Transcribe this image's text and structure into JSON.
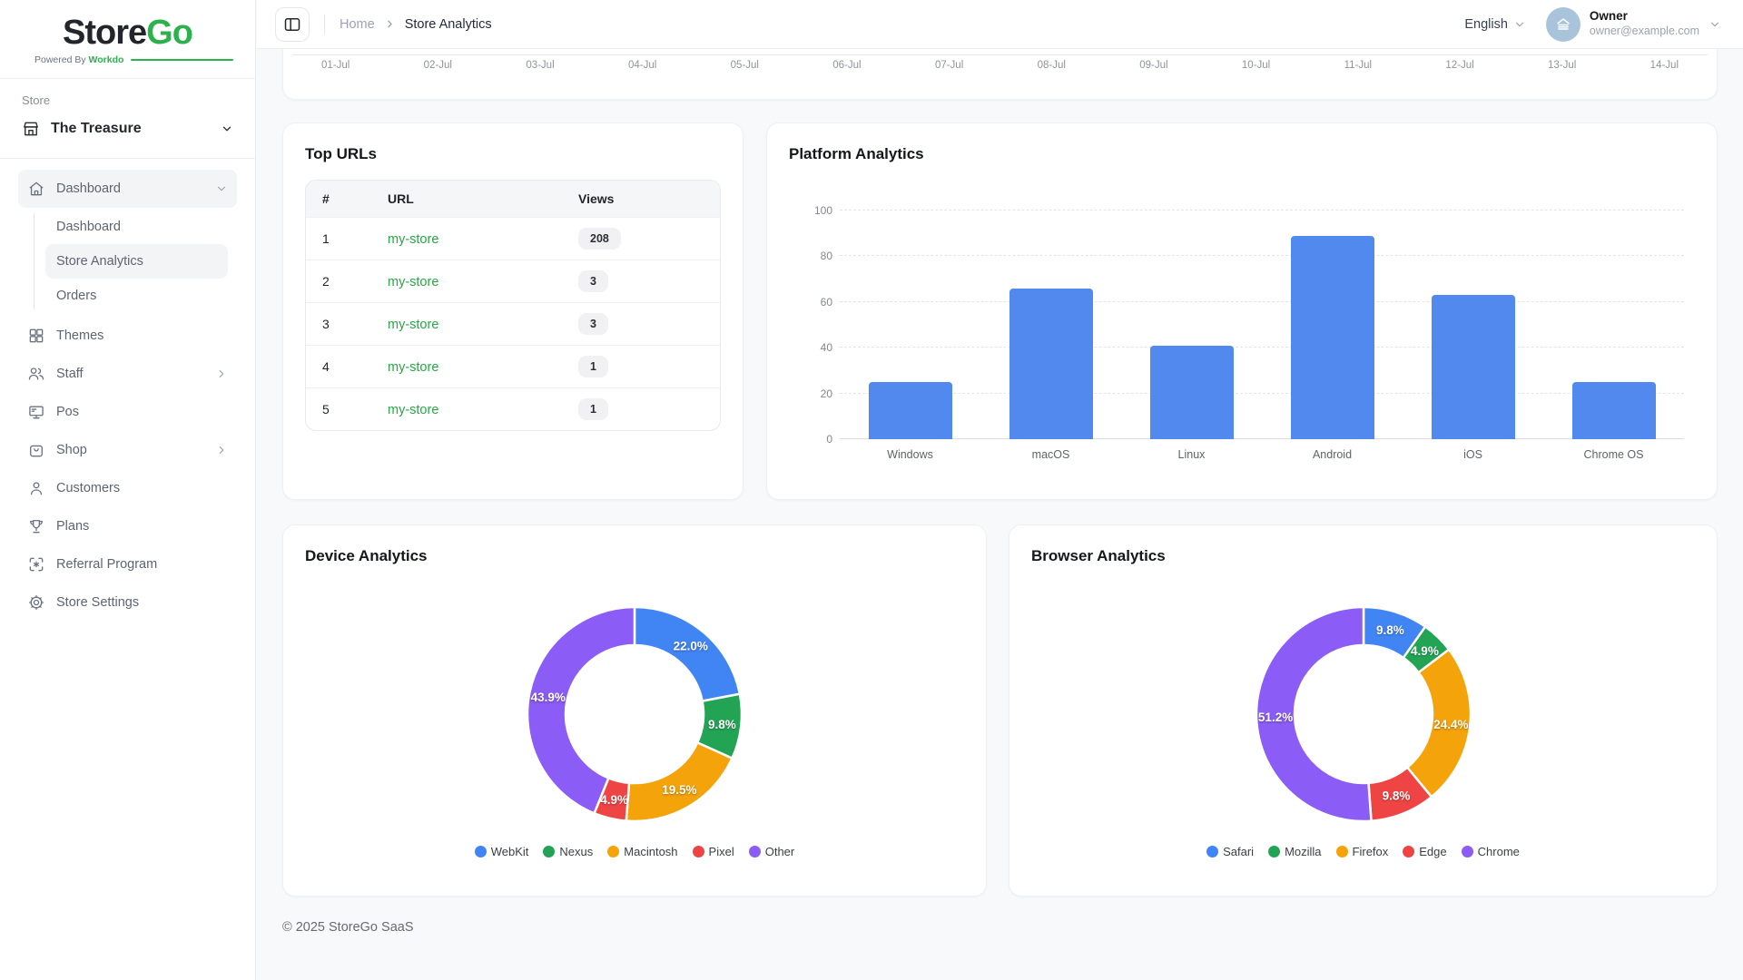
{
  "brand": {
    "name_primary": "Store",
    "name_secondary": "Go",
    "powered_prefix": "Powered By",
    "powered_brand": "Workdo",
    "accent_green": "#2BB24C"
  },
  "sidebar": {
    "section_label": "Store",
    "store_selector": {
      "label": "The Treasure"
    },
    "nav": [
      {
        "label": "Dashboard",
        "icon": "home-icon",
        "active": true,
        "expanded": true,
        "children": [
          {
            "label": "Dashboard",
            "active": false
          },
          {
            "label": "Store Analytics",
            "active": true
          },
          {
            "label": "Orders",
            "active": false
          }
        ]
      },
      {
        "label": "Themes",
        "icon": "grid-icon"
      },
      {
        "label": "Staff",
        "icon": "users-icon",
        "has_submenu": true
      },
      {
        "label": "Pos",
        "icon": "monitor-icon"
      },
      {
        "label": "Shop",
        "icon": "bag-icon",
        "has_submenu": true
      },
      {
        "label": "Customers",
        "icon": "user-icon"
      },
      {
        "label": "Plans",
        "icon": "trophy-icon"
      },
      {
        "label": "Referral Program",
        "icon": "referral-icon"
      },
      {
        "label": "Store Settings",
        "icon": "gear-icon"
      }
    ]
  },
  "header": {
    "breadcrumb": {
      "home": "Home",
      "current": "Store Analytics"
    },
    "language": "English",
    "user": {
      "name": "Owner",
      "email": "owner@example.com"
    }
  },
  "top_urls": {
    "title": "Top URLs",
    "columns": {
      "rank": "#",
      "url": "URL",
      "views": "Views"
    },
    "rows": [
      {
        "rank": "1",
        "url": "my-store",
        "views": "208"
      },
      {
        "rank": "2",
        "url": "my-store",
        "views": "3"
      },
      {
        "rank": "3",
        "url": "my-store",
        "views": "3"
      },
      {
        "rank": "4",
        "url": "my-store",
        "views": "1"
      },
      {
        "rank": "5",
        "url": "my-store",
        "views": "1"
      }
    ],
    "link_color": "#28a745"
  },
  "chart_data": [
    {
      "name": "visits_timeline",
      "type": "line",
      "x": [
        "01-Jul",
        "02-Jul",
        "03-Jul",
        "04-Jul",
        "05-Jul",
        "06-Jul",
        "07-Jul",
        "08-Jul",
        "09-Jul",
        "10-Jul",
        "11-Jul",
        "12-Jul",
        "13-Jul",
        "14-Jul"
      ],
      "note": "only the x-axis of this chart is visible; card is scrolled partly out of view"
    },
    {
      "name": "platform_analytics",
      "type": "bar",
      "title": "Platform Analytics",
      "categories": [
        "Windows",
        "macOS",
        "Linux",
        "Android",
        "iOS",
        "Chrome OS"
      ],
      "values": [
        25,
        66,
        41,
        89,
        63,
        25
      ],
      "ylim": [
        0,
        100
      ],
      "yticks": [
        0,
        20,
        40,
        60,
        80,
        100
      ],
      "grid": "dashed horizontal",
      "bar_color": "#5289EF"
    },
    {
      "name": "device_analytics",
      "type": "pie",
      "subtype": "donut",
      "title": "Device Analytics",
      "labels": [
        "WebKit",
        "Nexus",
        "Macintosh",
        "Pixel",
        "Other"
      ],
      "values": [
        22.0,
        9.8,
        19.5,
        4.9,
        43.9
      ],
      "display_values": [
        "22.0%",
        "9.8%",
        "19.5%",
        "4.9%",
        "43.9%"
      ],
      "colors": [
        "#4185F4",
        "#23A455",
        "#F5A30B",
        "#EF4444",
        "#8B5CF6"
      ],
      "legend_position": "bottom",
      "start_angle": "top, clockwise"
    },
    {
      "name": "browser_analytics",
      "type": "pie",
      "subtype": "donut",
      "title": "Browser Analytics",
      "labels": [
        "Safari",
        "Mozilla",
        "Firefox",
        "Edge",
        "Chrome"
      ],
      "values": [
        9.8,
        4.9,
        24.4,
        9.8,
        51.2
      ],
      "display_values": [
        "9.8%",
        "4.9%",
        "24.4%",
        "9.8%",
        "51.2%"
      ],
      "colors": [
        "#4185F4",
        "#23A455",
        "#F5A30B",
        "#EF4444",
        "#8B5CF6"
      ],
      "legend_position": "bottom",
      "start_angle": "top, clockwise"
    }
  ],
  "footer": {
    "copyright": "© 2025 StoreGo SaaS"
  }
}
